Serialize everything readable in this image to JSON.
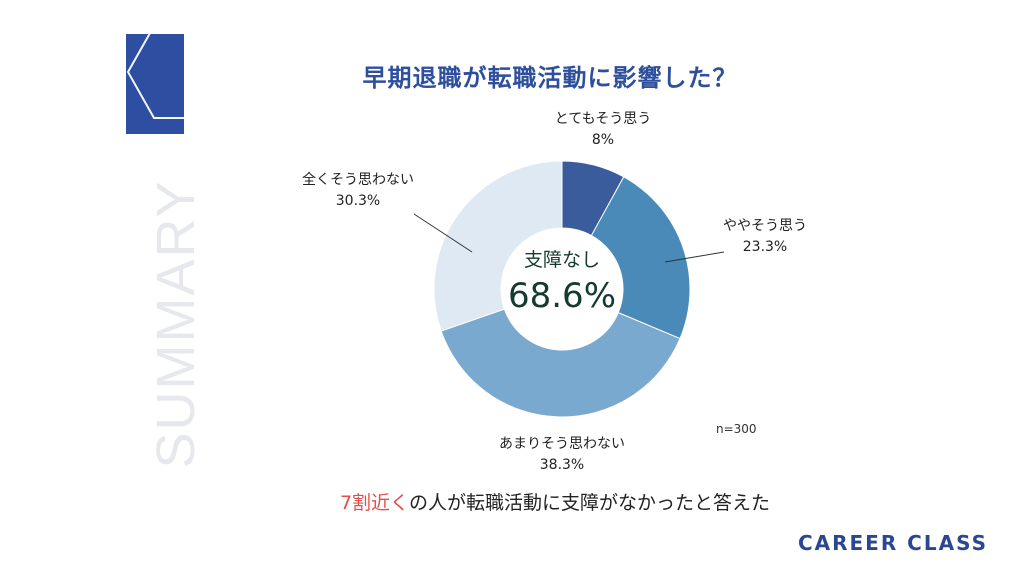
{
  "title": "早期退職が転職活動に影響した？",
  "side_text": "SUMMARY",
  "center": {
    "label": "支障なし",
    "value": "68.6%"
  },
  "sample_size": "n=300",
  "caption": {
    "highlight": "7割近く",
    "rest": "の人が転職活動に支障がなかったと答えた"
  },
  "brand": "CAREER CLASS",
  "colors": {
    "accent": "#2d4ea1",
    "highlight": "#e0504a"
  },
  "chart_data": {
    "type": "pie",
    "variant": "donut",
    "title": "早期退職が転職活動に影響した？",
    "series": [
      {
        "label": "とてもそう思う",
        "value": 8,
        "value_label": "8%",
        "color": "#3a5b9c"
      },
      {
        "label": "ややそう思う",
        "value": 23.3,
        "value_label": "23.3%",
        "color": "#4a8ab8"
      },
      {
        "label": "あまりそう思わない",
        "value": 38.3,
        "value_label": "38.3%",
        "color": "#7aa9d0"
      },
      {
        "label": "全くそう思わない",
        "value": 30.3,
        "value_label": "30.3%",
        "color": "#dfe9f3"
      }
    ]
  }
}
